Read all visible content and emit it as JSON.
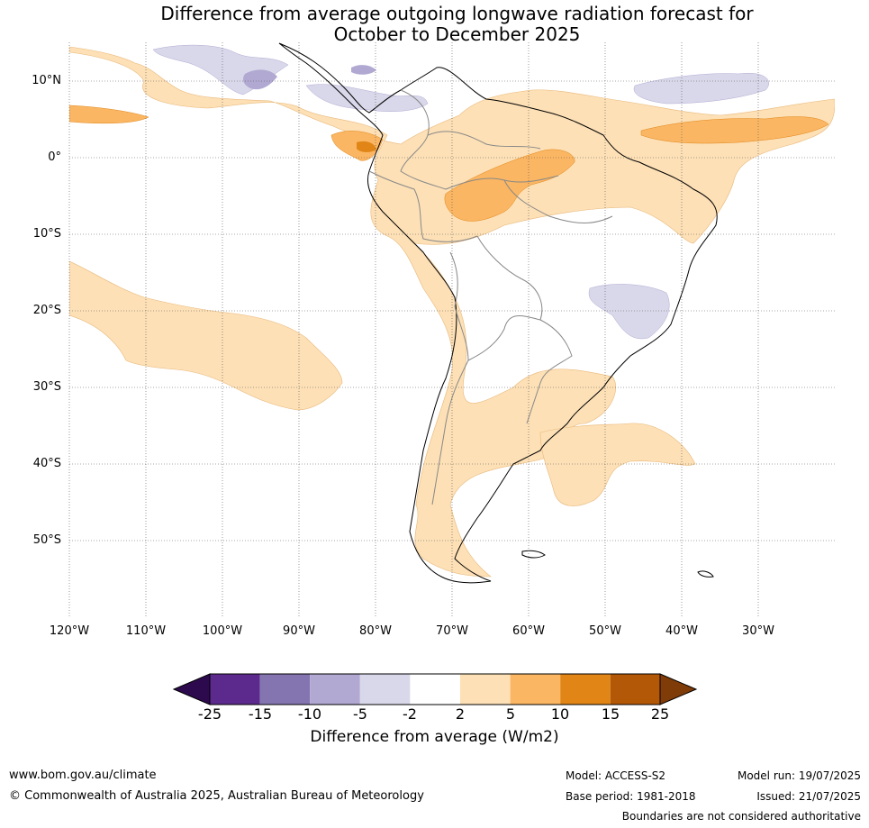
{
  "title_line1": "Difference from average outgoing longwave radiation forecast for",
  "title_line2": "October to December 2025",
  "lat_labels": [
    "10°N",
    "0°",
    "10°S",
    "20°S",
    "30°S",
    "40°S",
    "50°S"
  ],
  "lon_labels": [
    "120°W",
    "110°W",
    "100°W",
    "90°W",
    "80°W",
    "70°W",
    "60°W",
    "50°W",
    "40°W",
    "30°W"
  ],
  "colorbar": {
    "ticks": [
      "-25",
      "-15",
      "-10",
      "-5",
      "-2",
      "2",
      "5",
      "10",
      "15",
      "25"
    ],
    "label": "Difference from average (W/m2)",
    "colors": {
      "lt_-25": "#2d0a4e",
      "-25_-15": "#5c2a8c",
      "-15_-10": "#8475b0",
      "-10_-5": "#b1a9d2",
      "-5_-2": "#d8d8ea",
      "-2_2": "#ffffff",
      "2_5": "#fde0b6",
      "5_10": "#fbb663",
      "10_15": "#e08516",
      "15_25": "#b35806",
      "gt_25": "#7f3b08"
    }
  },
  "footer": {
    "website": "www.bom.gov.au/climate",
    "copyright": "© Commonwealth of Australia 2025, Australian Bureau of Meteorology",
    "model": "Model: ACCESS-S2",
    "base_period": "Base period: 1981-2018",
    "model_run": "Model run: 19/07/2025",
    "issued": "Issued: 21/07/2025",
    "disclaimer": "Boundaries are not considered authoritative"
  }
}
